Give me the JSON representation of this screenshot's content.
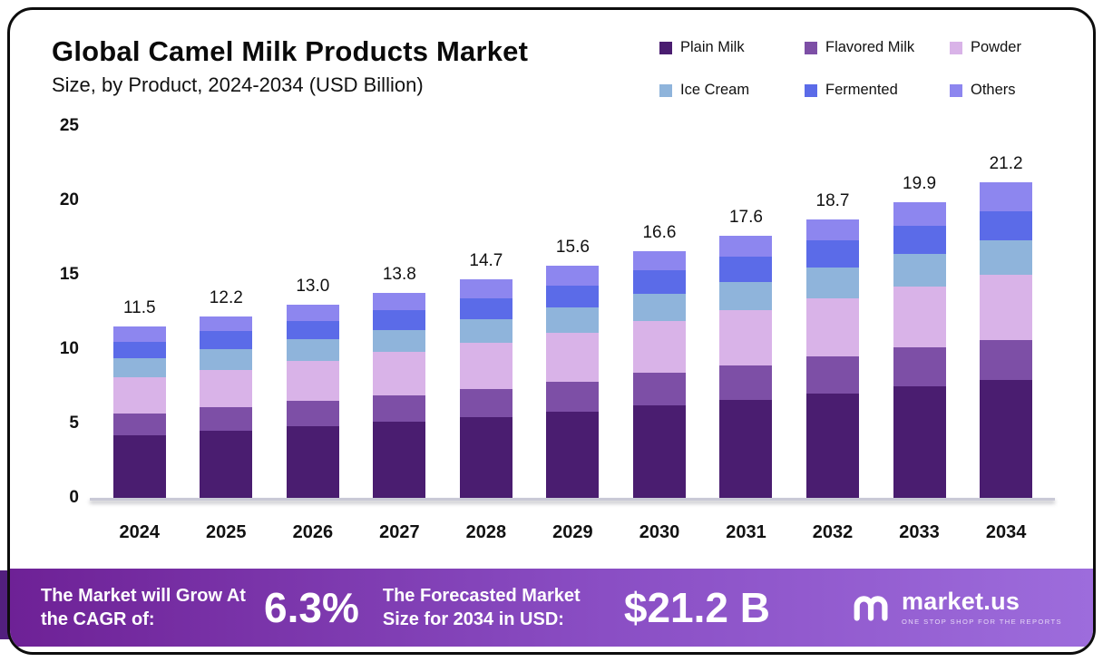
{
  "chart_data": {
    "type": "bar",
    "stacked": true,
    "title": "Global Camel Milk Products Market",
    "subtitle": "Size, by Product, 2024-2034 (USD Billion)",
    "categories": [
      "2024",
      "2025",
      "2026",
      "2027",
      "2028",
      "2029",
      "2030",
      "2031",
      "2032",
      "2033",
      "2034"
    ],
    "totals": [
      11.5,
      12.2,
      13.0,
      13.8,
      14.7,
      15.6,
      16.6,
      17.6,
      18.7,
      19.9,
      21.2
    ],
    "series": [
      {
        "name": "Plain Milk",
        "color": "#4A1D70",
        "values": [
          4.2,
          4.5,
          4.8,
          5.1,
          5.4,
          5.8,
          6.2,
          6.6,
          7.0,
          7.5,
          7.9
        ]
      },
      {
        "name": "Flavored Milk",
        "color": "#7D4FA6",
        "values": [
          1.5,
          1.6,
          1.7,
          1.8,
          1.9,
          2.0,
          2.2,
          2.3,
          2.5,
          2.6,
          2.7
        ]
      },
      {
        "name": "Powder",
        "color": "#D9B3E8",
        "values": [
          2.4,
          2.5,
          2.7,
          2.9,
          3.1,
          3.3,
          3.5,
          3.7,
          3.9,
          4.1,
          4.4
        ]
      },
      {
        "name": "Ice Cream",
        "color": "#8FB4DB",
        "values": [
          1.3,
          1.4,
          1.5,
          1.5,
          1.6,
          1.7,
          1.8,
          1.9,
          2.1,
          2.2,
          2.3
        ]
      },
      {
        "name": "Fermented",
        "color": "#5B6BE8",
        "values": [
          1.1,
          1.2,
          1.2,
          1.3,
          1.4,
          1.5,
          1.6,
          1.7,
          1.8,
          1.9,
          2.0
        ]
      },
      {
        "name": "Others",
        "color": "#8D86EF",
        "values": [
          1.0,
          1.0,
          1.1,
          1.2,
          1.3,
          1.3,
          1.3,
          1.4,
          1.4,
          1.6,
          1.9
        ]
      }
    ],
    "ylim": [
      0,
      25
    ],
    "yticks": [
      0,
      5,
      10,
      15,
      20,
      25
    ],
    "grid": false,
    "legend_position": "top-right",
    "value_labels": "totals-above-bars"
  },
  "banner": {
    "cagr_label": "The Market will Grow At the CAGR of:",
    "cagr_value": "6.3%",
    "forecast_label": "The Forecasted Market Size for 2034 in USD:",
    "forecast_value": "$21.2 B",
    "logo_text": "market.us",
    "logo_tagline": "ONE STOP SHOP FOR THE REPORTS"
  }
}
